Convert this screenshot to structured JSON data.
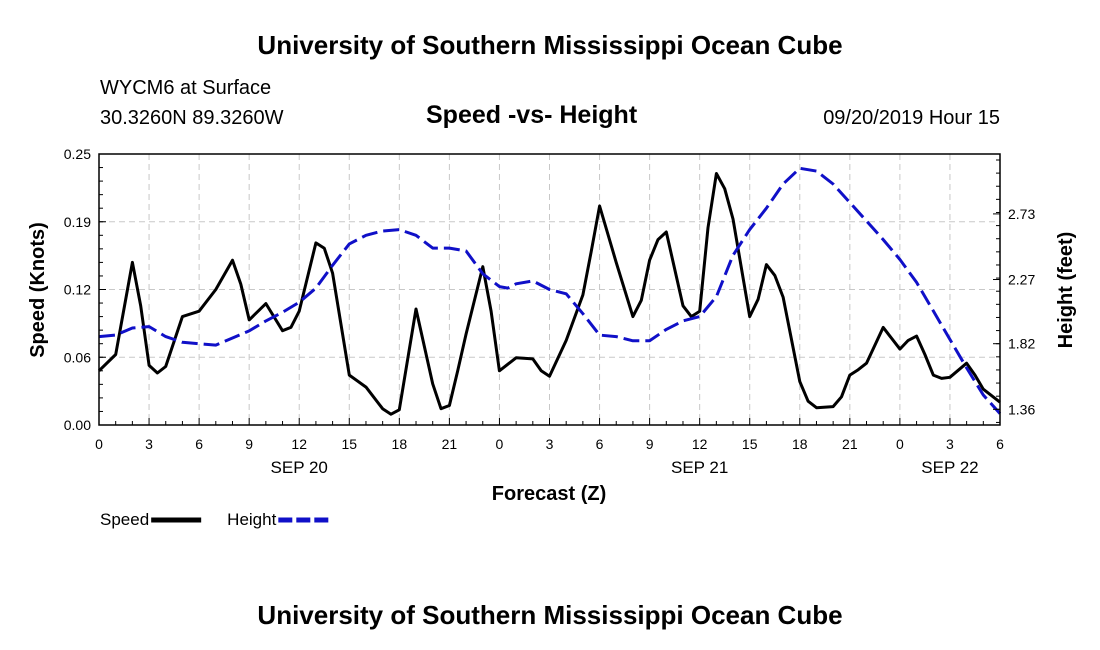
{
  "page": {
    "top_title": "University of Southern Mississippi Ocean Cube",
    "bottom_title": "University of Southern Mississippi Ocean Cube",
    "station": "WYCM6 at Surface",
    "coordinates": "30.3260N 89.3260W",
    "timestamp": "09/20/2019 Hour 15"
  },
  "chart_data": {
    "type": "line",
    "title": "Speed -vs- Height",
    "xlabel": "Forecast (Z)",
    "ylabel": "Speed (Knots)",
    "y2label": "Height (feet)",
    "grid": true,
    "x_unit": "hours since 09/20 00Z",
    "xlim": [
      0,
      54
    ],
    "ylim": [
      0,
      0.25
    ],
    "y2lim": [
      1.25,
      3.15
    ],
    "x_ticks": [
      0,
      3,
      6,
      9,
      12,
      15,
      18,
      21,
      24,
      27,
      30,
      33,
      36,
      39,
      42,
      45,
      48,
      51,
      54
    ],
    "x_tick_labels": [
      "0",
      "3",
      "6",
      "9",
      "12",
      "15",
      "18",
      "21",
      "0",
      "3",
      "6",
      "9",
      "12",
      "15",
      "18",
      "21",
      "0",
      "3",
      "6"
    ],
    "date_labels": [
      {
        "x": 12,
        "label": "SEP 20"
      },
      {
        "x": 36,
        "label": "SEP 21"
      },
      {
        "x": 51,
        "label": "SEP 22"
      }
    ],
    "y_ticks": [
      0,
      0.0625,
      0.125,
      0.1875,
      0.25
    ],
    "y_tick_labels": [
      "0.00",
      "0.06",
      "0.12",
      "0.19",
      "0.25"
    ],
    "y2_ticks": [
      1.36,
      1.82,
      2.27,
      2.73
    ],
    "y2_tick_labels": [
      "1.36",
      "1.82",
      "2.27",
      "2.73"
    ],
    "legend": [
      {
        "name": "Speed",
        "color": "#000000",
        "dashed": false
      },
      {
        "name": "Height",
        "color": "#1010c8",
        "dashed": true
      }
    ],
    "series": [
      {
        "name": "Speed",
        "axis": "left",
        "color": "#000000",
        "x": [
          0,
          1,
          2,
          2.5,
          3,
          3.5,
          4,
          5,
          6,
          7,
          8,
          8.5,
          9,
          10,
          11,
          11.5,
          12,
          13,
          13.5,
          14,
          15,
          16,
          17,
          17.5,
          18,
          19,
          20,
          20.5,
          21,
          21.5,
          22,
          23,
          23.5,
          24,
          25,
          26,
          26.5,
          27,
          28,
          29,
          29.5,
          30,
          31,
          32,
          32.5,
          33,
          33.5,
          34,
          35,
          35.5,
          36,
          36.5,
          37,
          37.5,
          38,
          39,
          39.5,
          40,
          40.5,
          41,
          42,
          42.5,
          43,
          44,
          44.5,
          45,
          45.5,
          46,
          47,
          48,
          48.5,
          49,
          49.5,
          50,
          50.5,
          51,
          52,
          52.5,
          53,
          54
        ],
        "values": [
          0.05,
          0.065,
          0.15,
          0.11,
          0.055,
          0.048,
          0.054,
          0.1,
          0.105,
          0.125,
          0.152,
          0.13,
          0.097,
          0.112,
          0.087,
          0.09,
          0.105,
          0.168,
          0.163,
          0.14,
          0.046,
          0.035,
          0.015,
          0.01,
          0.014,
          0.107,
          0.038,
          0.015,
          0.018,
          0.05,
          0.084,
          0.146,
          0.105,
          0.05,
          0.062,
          0.061,
          0.05,
          0.045,
          0.078,
          0.12,
          0.16,
          0.202,
          0.15,
          0.1,
          0.115,
          0.152,
          0.171,
          0.178,
          0.11,
          0.1,
          0.105,
          0.182,
          0.232,
          0.218,
          0.19,
          0.1,
          0.116,
          0.148,
          0.138,
          0.118,
          0.04,
          0.022,
          0.016,
          0.017,
          0.026,
          0.046,
          0.051,
          0.057,
          0.09,
          0.07,
          0.078,
          0.082,
          0.065,
          0.046,
          0.043,
          0.044,
          0.057,
          0.046,
          0.033,
          0.021
        ]
      },
      {
        "name": "Height",
        "axis": "right",
        "color": "#1010c8",
        "x": [
          0,
          1,
          2,
          3,
          4,
          5,
          6,
          7,
          8,
          9,
          10,
          11,
          12,
          13,
          14,
          15,
          16,
          17,
          18,
          19,
          20,
          21,
          22,
          23,
          24,
          24.5,
          25,
          26,
          27,
          28,
          29,
          30,
          31,
          32,
          33,
          34,
          35,
          36,
          37,
          38,
          39,
          40,
          41,
          42,
          43,
          44,
          45,
          46,
          47,
          48,
          49,
          50,
          51,
          52,
          53,
          54
        ],
        "values": [
          1.87,
          1.88,
          1.93,
          1.94,
          1.87,
          1.83,
          1.82,
          1.81,
          1.86,
          1.91,
          1.98,
          2.04,
          2.11,
          2.21,
          2.37,
          2.52,
          2.58,
          2.61,
          2.62,
          2.58,
          2.49,
          2.49,
          2.47,
          2.31,
          2.22,
          2.21,
          2.24,
          2.26,
          2.2,
          2.17,
          2.03,
          1.88,
          1.87,
          1.84,
          1.84,
          1.92,
          1.98,
          2.01,
          2.15,
          2.44,
          2.62,
          2.77,
          2.94,
          3.05,
          3.03,
          2.94,
          2.81,
          2.68,
          2.55,
          2.41,
          2.25,
          2.05,
          1.85,
          1.65,
          1.46,
          1.33
        ]
      }
    ]
  }
}
